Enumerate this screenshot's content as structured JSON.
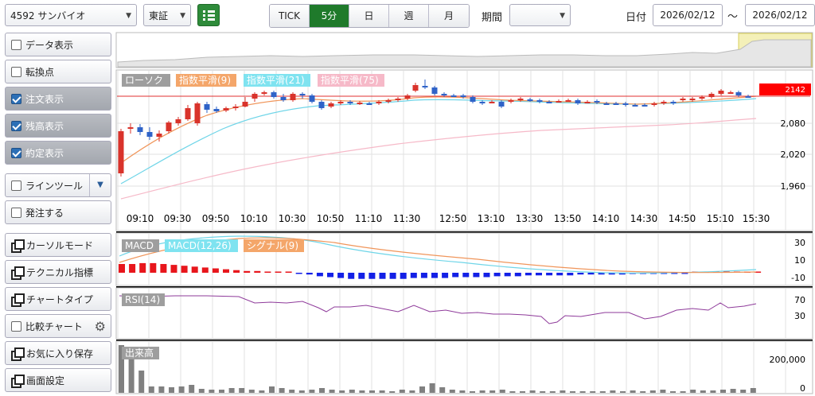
{
  "header": {
    "stock_label": "4592 サンバイオ",
    "market_label": "東証",
    "period_tabs": [
      "TICK",
      "5分",
      "日",
      "週",
      "月"
    ],
    "active_period": "5分",
    "range_label": "期間",
    "range_value": "",
    "date_label": "日付",
    "date_from": "2026/02/12",
    "date_sep": "～",
    "date_to": "2026/02/12"
  },
  "sidebar": {
    "items": [
      {
        "label": "データ表示",
        "kind": "check",
        "checked": false
      },
      {
        "label": "転換点",
        "kind": "check",
        "checked": false
      },
      {
        "label": "注文表示",
        "kind": "check",
        "checked": true
      },
      {
        "label": "残高表示",
        "kind": "check",
        "checked": true
      },
      {
        "label": "約定表示",
        "kind": "check",
        "checked": true
      },
      {
        "label": "ラインツール",
        "kind": "check-dropdown",
        "checked": false
      },
      {
        "label": "発注する",
        "kind": "check",
        "checked": false
      },
      {
        "label": "カーソルモード",
        "kind": "dialog"
      },
      {
        "label": "テクニカル指標",
        "kind": "dialog"
      },
      {
        "label": "チャートタイプ",
        "kind": "dialog"
      },
      {
        "label": "比較チャート",
        "kind": "check-gear",
        "checked": false
      },
      {
        "label": "お気に入り保存",
        "kind": "dialog"
      },
      {
        "label": "画面設定",
        "kind": "dialog"
      }
    ]
  },
  "chart": {
    "legend": [
      {
        "label": "ローソク",
        "color": "#9e9e9e"
      },
      {
        "label": "指数平滑(9)",
        "color": "#f4a66a"
      },
      {
        "label": "指数平滑(21)",
        "color": "#7fe3f0"
      },
      {
        "label": "指数平滑(75)",
        "color": "#f6b9c8"
      }
    ],
    "price_ticks": [
      "2,080",
      "2,020",
      "1,960"
    ],
    "current_price": "2142",
    "time_ticks": [
      "09:10",
      "09:30",
      "09:50",
      "10:10",
      "10:30",
      "10:50",
      "11:10",
      "11:30",
      "12:50",
      "13:10",
      "13:30",
      "13:50",
      "14:10",
      "14:30",
      "14:50",
      "15:10",
      "15:30"
    ],
    "macd_legend": [
      {
        "label": "MACD",
        "color": "#9e9e9e"
      },
      {
        "label": "MACD(12,26)",
        "color": "#7fe3f0"
      },
      {
        "label": "シグナル(9)",
        "color": "#f4a66a"
      }
    ],
    "macd_ticks": [
      "30",
      "10",
      "-10"
    ],
    "rsi_legend": "RSI(14)",
    "rsi_ticks": [
      "70",
      "30"
    ],
    "volume_legend": "出来高",
    "volume_ticks": [
      "200,000",
      "0"
    ],
    "colors": {
      "up": "#d9332b",
      "down": "#2f63c8",
      "macd_pos": "#e8161c",
      "macd_neg": "#1320e6",
      "rsi": "#8e3a9a",
      "volume": "#808080"
    }
  }
}
